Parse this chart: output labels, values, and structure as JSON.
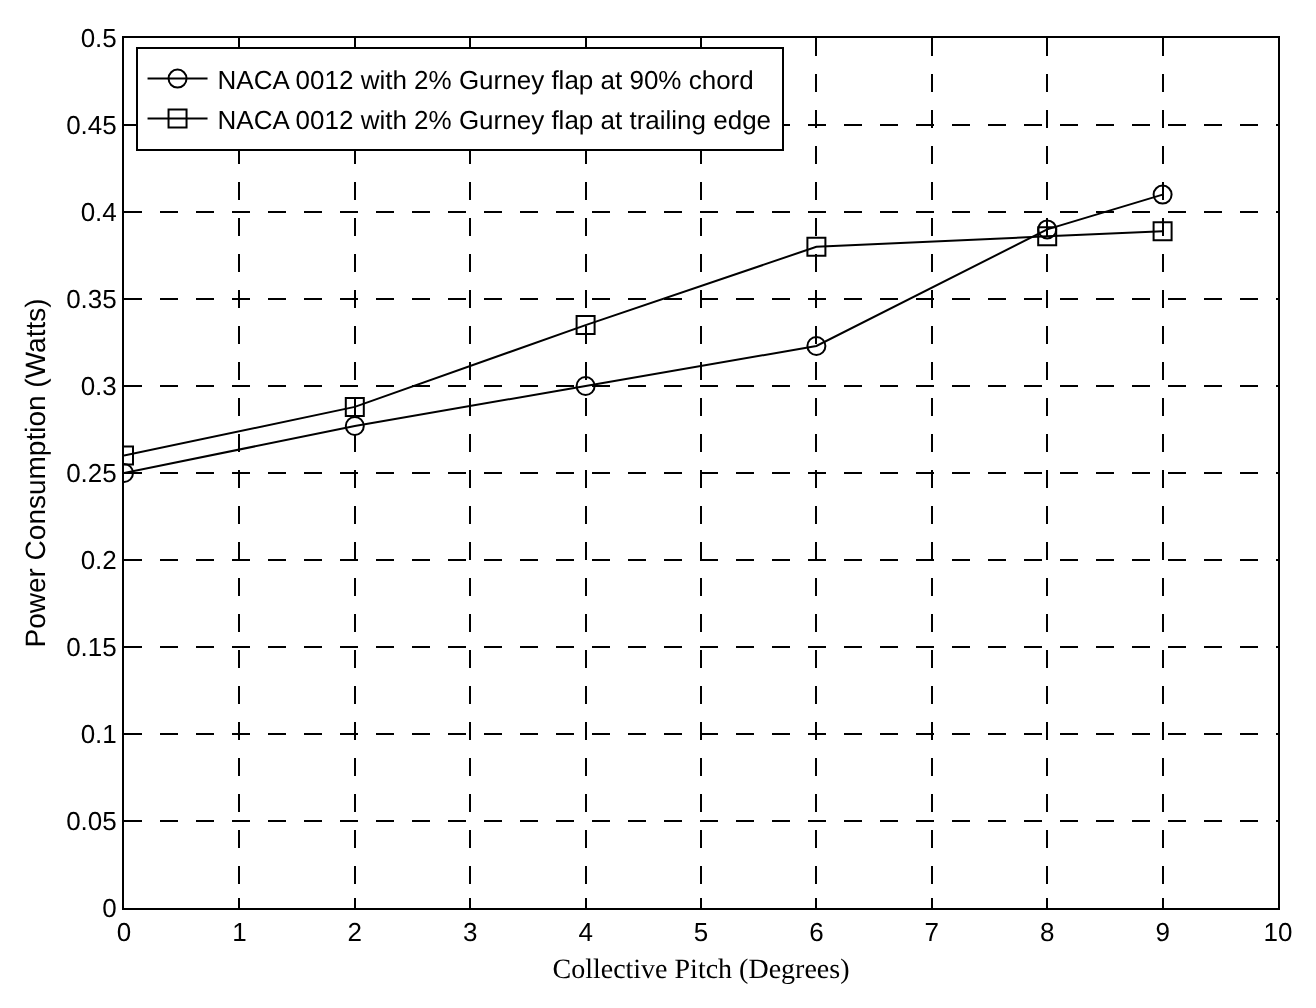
{
  "chart_data": {
    "type": "line",
    "xlabel": "Collective Pitch (Degrees)",
    "ylabel": "Power Consumption (Watts)",
    "x": [
      0,
      2,
      4,
      6,
      8,
      9
    ],
    "series": [
      {
        "name": "NACA 0012 with 2% Gurney flap at 90% chord",
        "color": "#000000",
        "marker": "circle",
        "values": [
          0.25,
          0.277,
          0.3,
          0.323,
          0.39,
          0.41
        ]
      },
      {
        "name": "NACA 0012 with 2% Gurney flap at trailing edge",
        "color": "#000000",
        "marker": "square",
        "values": [
          0.26,
          0.288,
          0.335,
          0.38,
          0.386,
          0.389
        ]
      }
    ],
    "xlim": [
      0,
      10
    ],
    "xticks": [
      0,
      1,
      2,
      3,
      4,
      5,
      6,
      7,
      8,
      9,
      10
    ],
    "ylim": [
      0,
      0.5
    ],
    "yticks": [
      0,
      0.05,
      0.1,
      0.15,
      0.2,
      0.25,
      0.3,
      0.35,
      0.4,
      0.45,
      0.5
    ],
    "grid": true,
    "legend": "top left",
    "line_style": "solid"
  }
}
